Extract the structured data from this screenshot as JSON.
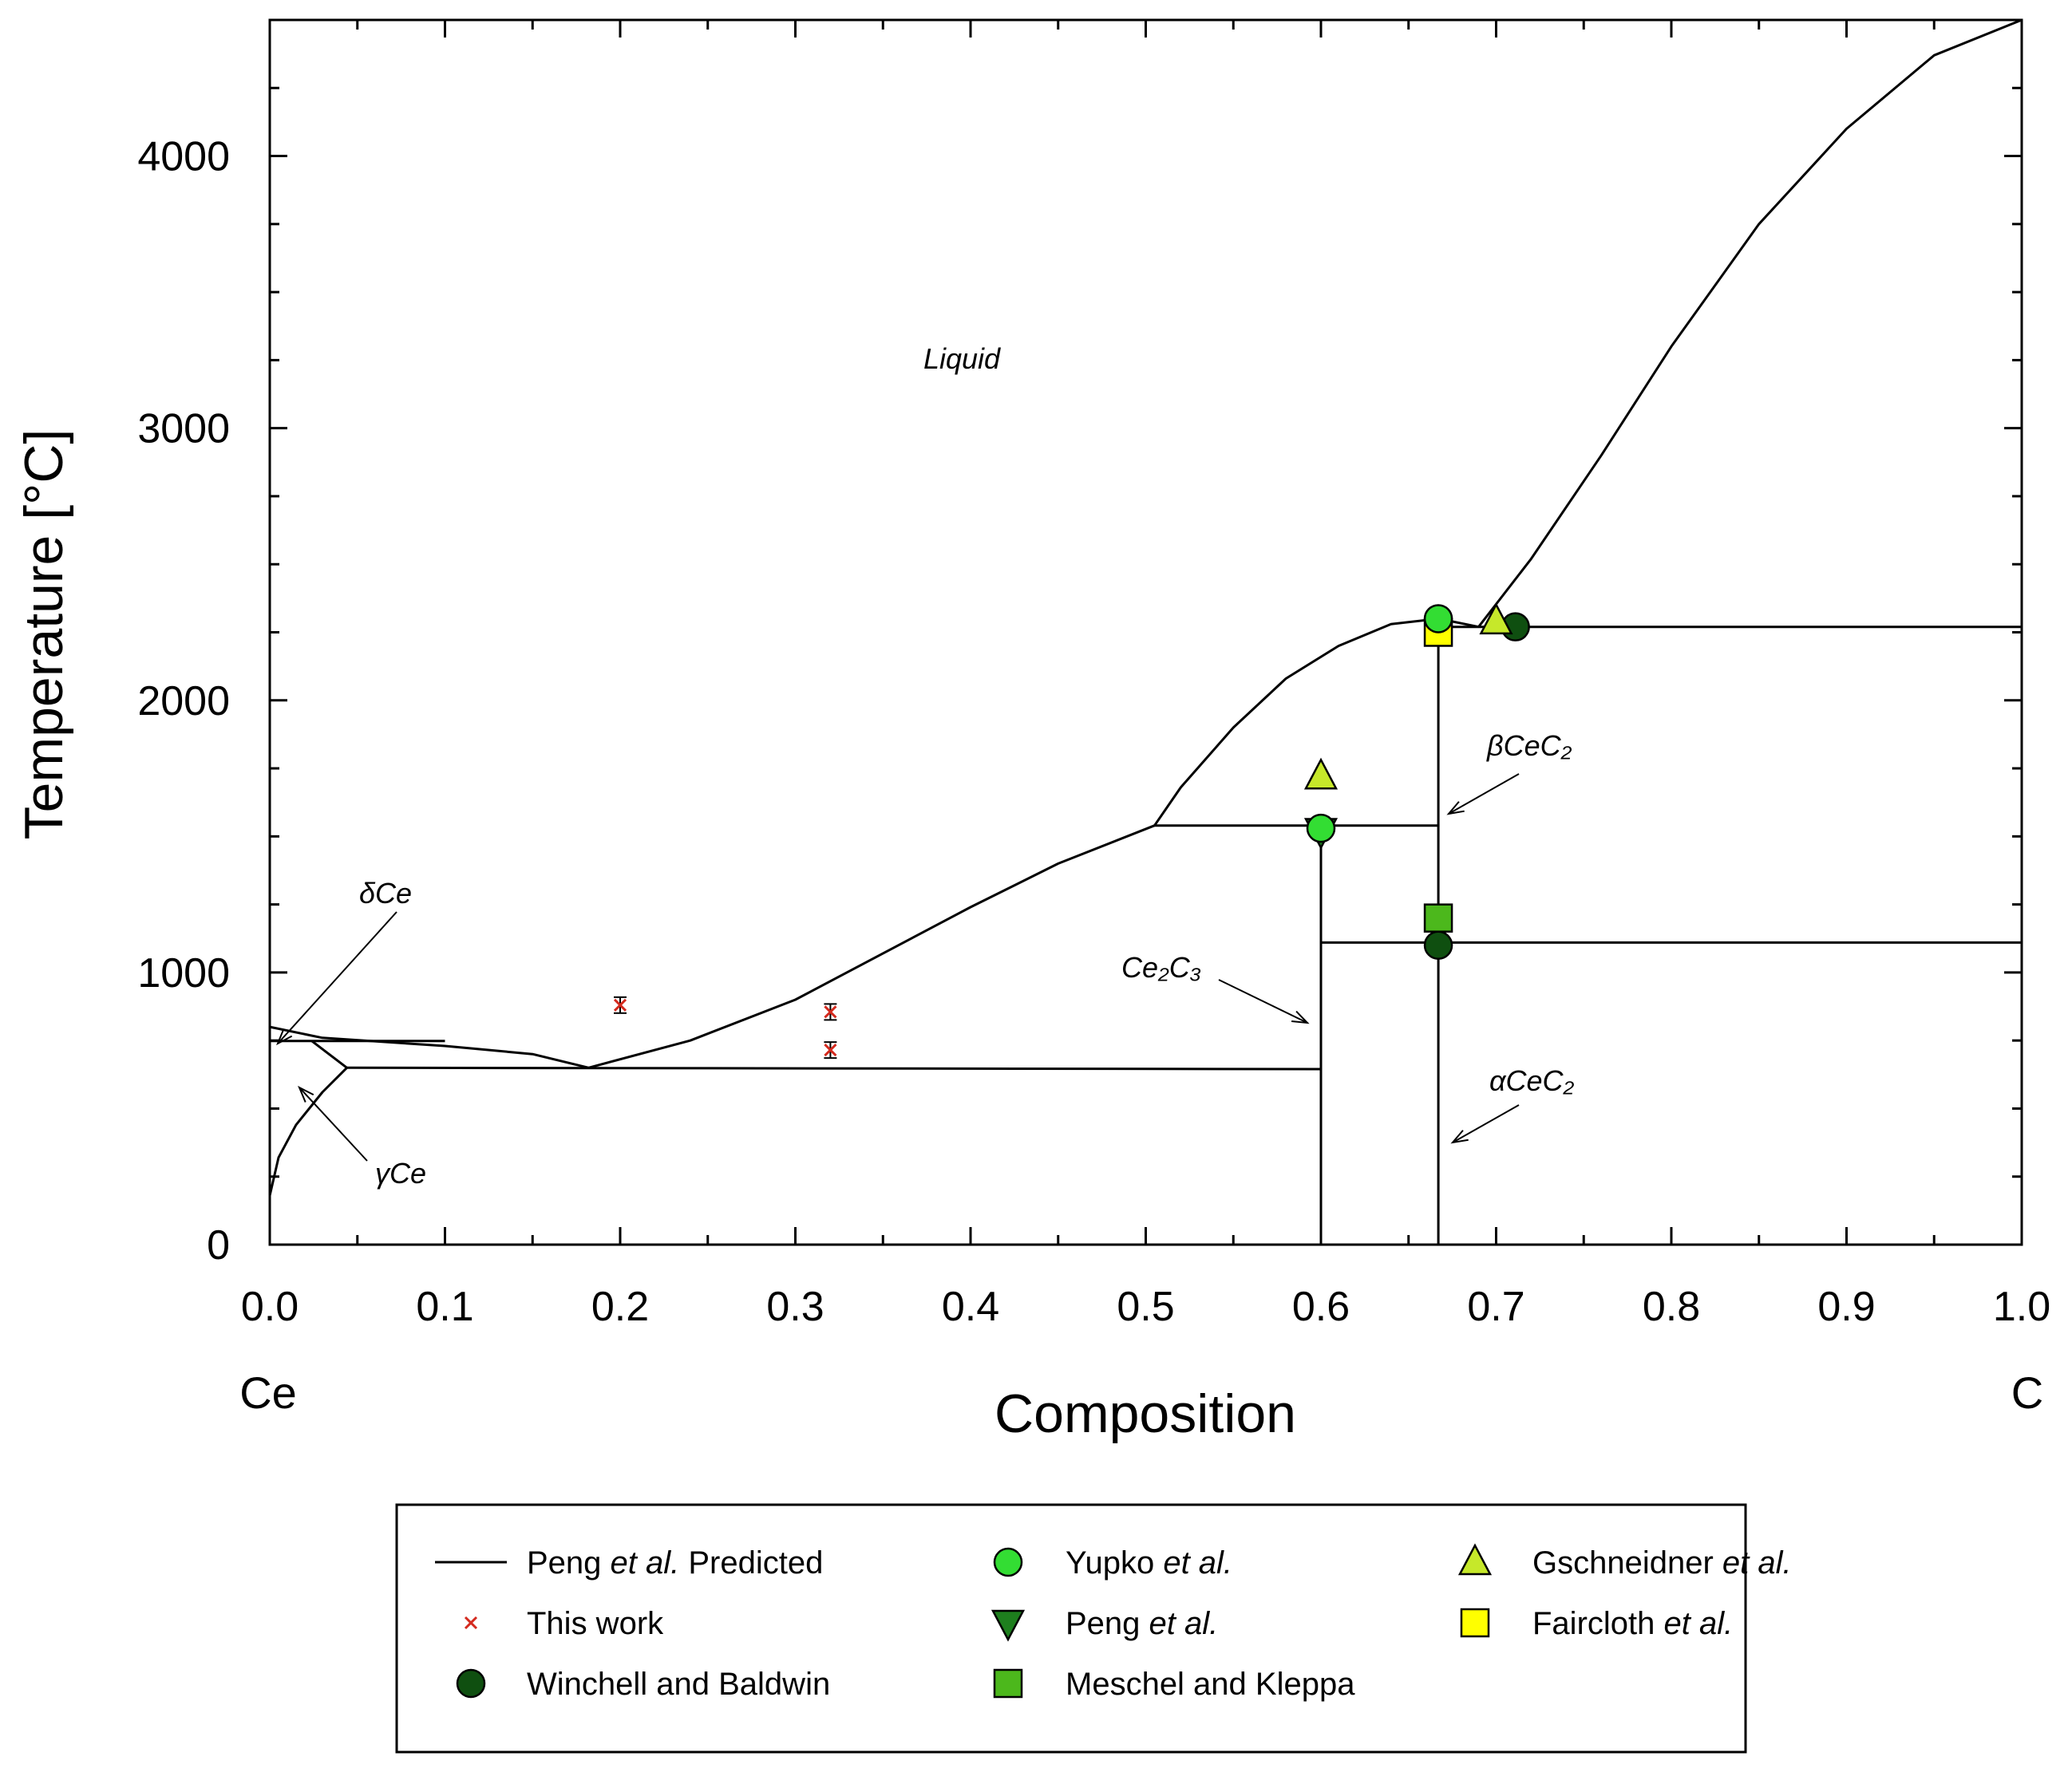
{
  "chart_data": {
    "type": "scatter",
    "title": "",
    "xlabel": "Composition",
    "ylabel": "Temperature [°C]",
    "xlim": [
      0.0,
      1.0
    ],
    "ylim": [
      0,
      4500
    ],
    "x_ticks": [
      "0.0",
      "0.1",
      "0.2",
      "0.3",
      "0.4",
      "0.5",
      "0.6",
      "0.7",
      "0.8",
      "0.9",
      "1.0"
    ],
    "y_ticks": [
      "0",
      "1000",
      "2000",
      "3000",
      "4000"
    ],
    "x_end_labels": {
      "left": "Ce",
      "right": "C"
    },
    "region_labels": {
      "liquid": "Liquid",
      "delta_ce": "δCe",
      "gamma_ce": "γCe",
      "ce2c3": "Ce₂C₃",
      "beta_cec2": "βCeC₂",
      "alpha_cec2": "αCeC₂"
    },
    "legend": [
      {
        "key": "predicted",
        "label_pre": "Peng ",
        "label_italic": "et al.",
        "label_post": " Predicted",
        "marker": "line",
        "color": "#000000"
      },
      {
        "key": "this_work",
        "label_pre": "This work",
        "label_italic": "",
        "label_post": "",
        "marker": "x",
        "color": "#d42a1e"
      },
      {
        "key": "winchell",
        "label_pre": "Winchell and Baldwin",
        "label_italic": "",
        "label_post": "",
        "marker": "circle",
        "color": "#0f4f10"
      },
      {
        "key": "yupko",
        "label_pre": "Yupko ",
        "label_italic": "et al.",
        "label_post": "",
        "marker": "circle",
        "color": "#33dd33"
      },
      {
        "key": "peng",
        "label_pre": "Peng ",
        "label_italic": "et al.",
        "label_post": "",
        "marker": "triangle-down",
        "color": "#1e7f1e"
      },
      {
        "key": "meschel",
        "label_pre": "Meschel and Kleppa",
        "label_italic": "",
        "label_post": "",
        "marker": "square",
        "color": "#4cb81c"
      },
      {
        "key": "gschneidner",
        "label_pre": "Gschneidner ",
        "label_italic": "et al.",
        "label_post": "",
        "marker": "triangle-up",
        "color": "#c6e82a"
      },
      {
        "key": "faircloth",
        "label_pre": "Faircloth ",
        "label_italic": "et al.",
        "label_post": "",
        "marker": "square",
        "color": "#ffff00"
      }
    ],
    "curves": [
      {
        "name": "delta-ce-solvus",
        "points": [
          [
            0.0,
            800
          ],
          [
            0.03,
            760
          ],
          [
            0.1,
            730
          ],
          [
            0.15,
            700
          ],
          [
            0.182,
            650
          ]
        ]
      },
      {
        "name": "liquidus-left",
        "points": [
          [
            0.182,
            650
          ],
          [
            0.24,
            750
          ],
          [
            0.3,
            900
          ],
          [
            0.4,
            1240
          ],
          [
            0.45,
            1400
          ],
          [
            0.505,
            1540
          ]
        ]
      },
      {
        "name": "liquidus-mid",
        "points": [
          [
            0.505,
            1540
          ],
          [
            0.52,
            1680
          ],
          [
            0.55,
            1900
          ],
          [
            0.58,
            2080
          ],
          [
            0.61,
            2200
          ],
          [
            0.64,
            2280
          ],
          [
            0.667,
            2300
          ],
          [
            0.69,
            2270
          ]
        ]
      },
      {
        "name": "liquidus-right",
        "points": [
          [
            0.69,
            2270
          ],
          [
            0.72,
            2520
          ],
          [
            0.76,
            2900
          ],
          [
            0.8,
            3300
          ],
          [
            0.85,
            3750
          ],
          [
            0.9,
            4100
          ],
          [
            0.95,
            4370
          ],
          [
            1.0,
            4500
          ]
        ]
      },
      {
        "name": "gamma-ce-boundary",
        "points": [
          [
            0.0,
            180
          ],
          [
            0.005,
            320
          ],
          [
            0.015,
            440
          ],
          [
            0.03,
            560
          ],
          [
            0.044,
            650
          ]
        ]
      },
      {
        "name": "gamma-delta-link",
        "points": [
          [
            0.024,
            748
          ],
          [
            0.044,
            650
          ]
        ]
      },
      {
        "name": "eutectic-iso",
        "points": [
          [
            0.044,
            650
          ],
          [
            0.6,
            645
          ]
        ]
      },
      {
        "name": "delta-iso",
        "points": [
          [
            0.0,
            748
          ],
          [
            0.1,
            748
          ]
        ]
      },
      {
        "name": "peritectic-iso",
        "points": [
          [
            0.505,
            1540
          ],
          [
            0.667,
            1540
          ]
        ]
      },
      {
        "name": "beta-alpha-iso",
        "points": [
          [
            0.6,
            1110
          ],
          [
            1.0,
            1110
          ]
        ]
      },
      {
        "name": "eutectic-high-iso",
        "points": [
          [
            0.667,
            2270
          ],
          [
            1.0,
            2270
          ]
        ]
      },
      {
        "name": "ce2c3-line",
        "points": [
          [
            0.6,
            0
          ],
          [
            0.6,
            1540
          ]
        ]
      },
      {
        "name": "cec2-line",
        "points": [
          [
            0.667,
            0
          ],
          [
            0.667,
            2300
          ]
        ]
      }
    ],
    "series": [
      {
        "name": "This work",
        "key": "this_work",
        "x": [
          0.2,
          0.32,
          0.32,
          0.669
        ],
        "y": [
          880,
          855,
          715,
          1140
        ]
      },
      {
        "name": "Winchell and Baldwin",
        "key": "winchell",
        "x": [
          0.667,
          0.711
        ],
        "y": [
          1100,
          2270
        ]
      },
      {
        "name": "Yupko et al.",
        "key": "yupko",
        "x": [
          0.6,
          0.667
        ],
        "y": [
          1530,
          2300
        ]
      },
      {
        "name": "Peng et al.",
        "key": "peng",
        "x": [
          0.6
        ],
        "y": [
          1520
        ]
      },
      {
        "name": "Meschel and Kleppa",
        "key": "meschel",
        "x": [
          0.667
        ],
        "y": [
          1200
        ]
      },
      {
        "name": "Gschneidner et al.",
        "key": "gschneidner",
        "x": [
          0.6,
          0.7
        ],
        "y": [
          1720,
          2290
        ]
      },
      {
        "name": "Faircloth et al.",
        "key": "faircloth",
        "x": [
          0.667
        ],
        "y": [
          2250
        ]
      }
    ]
  }
}
